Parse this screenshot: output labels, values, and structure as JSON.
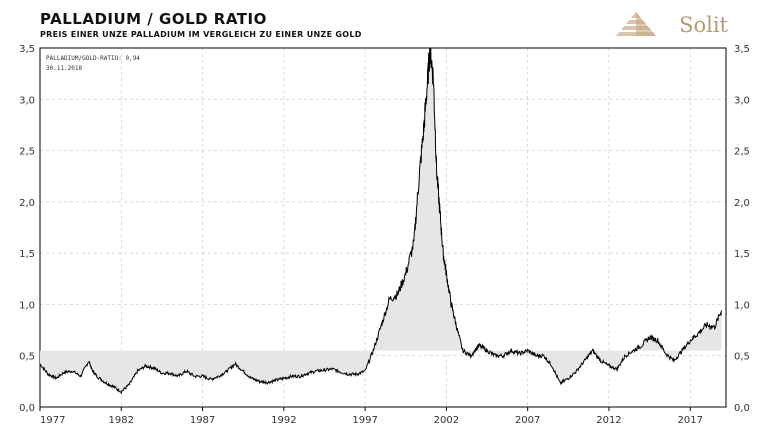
{
  "header": {
    "title": "PALLADIUM / GOLD RATIO",
    "subtitle": "PREIS EINER UNZE PALLADIUM IM VERGLEICH ZU EINER UNZE GOLD",
    "brand": "Solit"
  },
  "colors": {
    "line": "#000000",
    "fill": "#e6e6e6",
    "grid": "#cccccc",
    "brand": "#b59a72"
  },
  "chart_data": {
    "type": "area",
    "title": "PALLADIUM / GOLD RATIO",
    "subtitle": "PREIS EINER UNZE PALLADIUM IM VERGLEICH ZU EINER UNZE GOLD",
    "annotation_label": "PALLADIUM/GOLD-RATIO: 0,94",
    "annotation_date": "30.11.2018",
    "fill_baseline": 0.55,
    "xlim": [
      1977,
      2019.2
    ],
    "ylim": [
      0,
      3.5
    ],
    "x_ticks": [
      "1977",
      "1982",
      "1987",
      "1992",
      "1997",
      "2002",
      "2007",
      "2012",
      "2017"
    ],
    "y_ticks": [
      "0,0",
      "0,5",
      "1,0",
      "1,5",
      "2,0",
      "2,5",
      "3,0",
      "3,5"
    ],
    "grid": true,
    "series": [
      {
        "x": [
          1977.0,
          1977.5,
          1978.0,
          1978.5,
          1979.0,
          1979.5,
          1980.0,
          1980.2,
          1980.5,
          1981.0,
          1981.5,
          1982.0,
          1982.5,
          1983.0,
          1983.5,
          1984.0,
          1984.5,
          1985.0,
          1985.5,
          1986.0,
          1986.5,
          1987.0,
          1987.5,
          1988.0,
          1988.5,
          1989.0,
          1989.5,
          1990.0,
          1990.5,
          1991.0,
          1991.5,
          1992.0,
          1992.5,
          1993.0,
          1993.5,
          1994.0,
          1994.5,
          1995.0,
          1995.5,
          1996.0,
          1996.5,
          1997.0,
          1997.5,
          1998.0,
          1998.5,
          1999.0,
          1999.5,
          2000.0,
          2000.3,
          2000.6,
          2000.8,
          2001.0,
          2001.2,
          2001.4,
          2001.6,
          2001.8,
          2002.0,
          2002.3,
          2002.6,
          2003.0,
          2003.5,
          2004.0,
          2004.5,
          2005.0,
          2005.5,
          2006.0,
          2006.5,
          2007.0,
          2007.5,
          2008.0,
          2008.5,
          2009.0,
          2009.5,
          2010.0,
          2010.5,
          2011.0,
          2011.5,
          2012.0,
          2012.5,
          2013.0,
          2013.5,
          2014.0,
          2014.5,
          2015.0,
          2015.5,
          2016.0,
          2016.5,
          2017.0,
          2017.5,
          2018.0,
          2018.5,
          2018.92
        ],
        "values": [
          0.42,
          0.32,
          0.28,
          0.34,
          0.35,
          0.3,
          0.45,
          0.36,
          0.3,
          0.24,
          0.2,
          0.15,
          0.22,
          0.35,
          0.4,
          0.38,
          0.33,
          0.33,
          0.3,
          0.35,
          0.3,
          0.3,
          0.27,
          0.3,
          0.35,
          0.42,
          0.35,
          0.28,
          0.25,
          0.24,
          0.26,
          0.28,
          0.3,
          0.3,
          0.33,
          0.35,
          0.36,
          0.37,
          0.34,
          0.32,
          0.32,
          0.35,
          0.55,
          0.8,
          1.05,
          1.1,
          1.3,
          1.6,
          2.2,
          2.7,
          3.1,
          3.5,
          3.2,
          2.3,
          1.9,
          1.5,
          1.3,
          1.0,
          0.8,
          0.55,
          0.5,
          0.6,
          0.55,
          0.5,
          0.5,
          0.55,
          0.52,
          0.55,
          0.5,
          0.5,
          0.4,
          0.23,
          0.28,
          0.35,
          0.45,
          0.55,
          0.45,
          0.4,
          0.37,
          0.5,
          0.55,
          0.6,
          0.68,
          0.65,
          0.52,
          0.45,
          0.55,
          0.65,
          0.72,
          0.8,
          0.78,
          0.94
        ]
      }
    ]
  }
}
